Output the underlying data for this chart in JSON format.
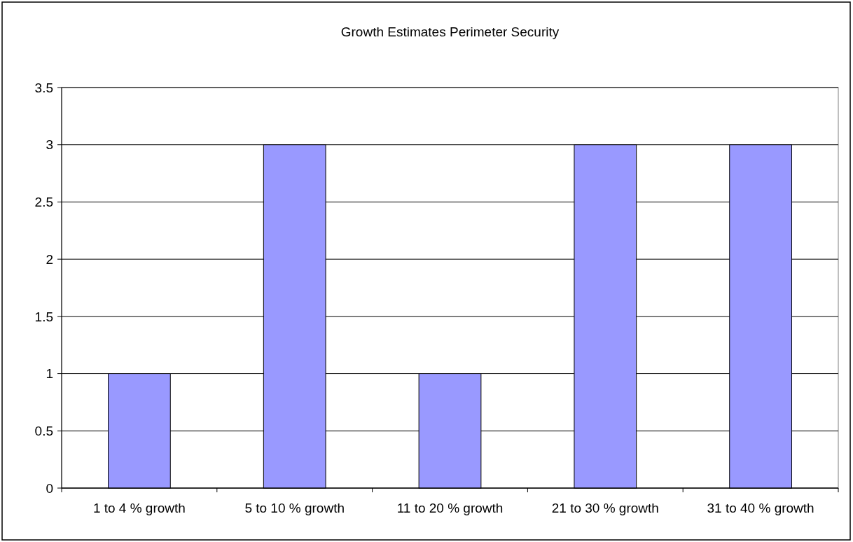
{
  "chart_data": {
    "type": "bar",
    "title": "Growth Estimates Perimeter Security",
    "categories": [
      "1 to 4 % growth",
      "5 to 10 % growth",
      "11 to 20 % growth",
      "21 to 30 % growth",
      "31 to 40 % growth"
    ],
    "values": [
      1,
      3,
      1,
      3,
      3
    ],
    "color": "#9999ff",
    "ylim": [
      0,
      3.5
    ],
    "yticks": [
      0,
      0.5,
      1,
      1.5,
      2,
      2.5,
      3,
      3.5
    ],
    "grid": "y"
  }
}
